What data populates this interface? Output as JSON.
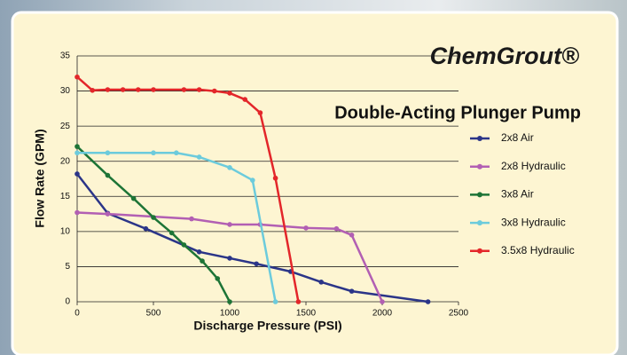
{
  "chart_data": {
    "type": "line",
    "logo": "ChemGrout®",
    "title": "Double-Acting Plunger Pump",
    "x_label": "Discharge Pressure (PSI)",
    "y_label": "Flow Rate (GPM)",
    "xlim": [
      0,
      2500
    ],
    "xticks": [
      0,
      500,
      1000,
      1500,
      2000,
      2500
    ],
    "ylim": [
      0,
      35
    ],
    "yticks": [
      0,
      5,
      10,
      15,
      20,
      25,
      30,
      35
    ],
    "grid": true,
    "legend": "right",
    "series": [
      {
        "name": "2x8 Air",
        "color": "#2b3588",
        "x": [
          0,
          200,
          450,
          800,
          1000,
          1175,
          1400,
          1600,
          1800,
          2300
        ],
        "values": [
          18.2,
          12.6,
          10.4,
          7.1,
          6.2,
          5.4,
          4.3,
          2.8,
          1.5,
          0
        ]
      },
      {
        "name": "2x8 Hydraulic",
        "color": "#b25fb3",
        "x": [
          0,
          200,
          750,
          1000,
          1200,
          1500,
          1700,
          1800,
          2000
        ],
        "values": [
          12.7,
          12.5,
          11.8,
          11.0,
          11.0,
          10.5,
          10.4,
          9.5,
          0
        ]
      },
      {
        "name": "3x8 Air",
        "color": "#1d7436",
        "x": [
          0,
          200,
          370,
          500,
          620,
          700,
          820,
          920,
          1000
        ],
        "values": [
          22.1,
          18,
          14.7,
          12,
          9.8,
          8.1,
          5.8,
          3.3,
          0
        ]
      },
      {
        "name": "3x8 Hydraulic",
        "color": "#6ccbdc",
        "x": [
          0,
          200,
          500,
          650,
          800,
          1000,
          1150,
          1300
        ],
        "values": [
          21.2,
          21.2,
          21.2,
          21.2,
          20.6,
          19.1,
          17.3,
          0
        ]
      },
      {
        "name": "3.5x8 Hydraulic",
        "color": "#e3262a",
        "x": [
          0,
          100,
          200,
          300,
          400,
          500,
          700,
          800,
          900,
          1000,
          1100,
          1200,
          1300,
          1450
        ],
        "values": [
          32,
          30.1,
          30.2,
          30.2,
          30.2,
          30.2,
          30.2,
          30.2,
          30,
          29.7,
          28.8,
          26.9,
          17.6,
          0
        ]
      }
    ]
  }
}
